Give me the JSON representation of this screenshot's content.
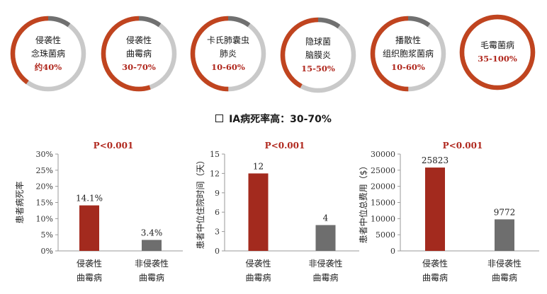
{
  "rings": [
    {
      "lines": [
        "侵袭性",
        "念珠菌病"
      ],
      "pct": "约40%",
      "fraction": 0.4
    },
    {
      "lines": [
        "侵袭性",
        "曲霉病"
      ],
      "pct": "30-70%",
      "fraction": 0.55
    },
    {
      "lines": [
        "卡氏肺囊虫",
        "肺炎"
      ],
      "pct": "10-60%",
      "fraction": 0.5
    },
    {
      "lines": [
        "隐球菌",
        "脑膜炎"
      ],
      "pct": "15-50%",
      "fraction": 0.42
    },
    {
      "lines": [
        "播散性",
        "组织胞浆菌病"
      ],
      "pct": "10-60%",
      "fraction": 0.5
    },
    {
      "lines": [
        "毛霉菌病"
      ],
      "pct": "35-100%",
      "fraction": 1.0
    }
  ],
  "colors": {
    "accent": "#c0441f",
    "pvalue": "#b0281e",
    "bar_red": "#a32a1e",
    "bar_gray": "#6e6e6e",
    "ring_gray": "#c9c9c9",
    "ring_dark": "#707070"
  },
  "headline": "IA病死率高：30-70%",
  "chart_data": [
    {
      "type": "bar",
      "title": "P<0.001",
      "ylabel": "患者病死率",
      "categories": [
        [
          "侵袭性",
          "曲霉病"
        ],
        [
          "非侵袭性",
          "曲霉病"
        ]
      ],
      "values": [
        14.1,
        3.4
      ],
      "value_labels": [
        "14.1%",
        "3.4%"
      ],
      "ylim": [
        0,
        30
      ],
      "yticks": [
        "0%",
        "5%",
        "10%",
        "15%",
        "20%",
        "25%",
        "30%"
      ],
      "ytick_values": [
        0,
        5,
        10,
        15,
        20,
        25,
        30
      ]
    },
    {
      "type": "bar",
      "title": "P<0.001",
      "ylabel": "患者中位住院时间（天）",
      "categories": [
        [
          "侵袭性",
          "曲霉病"
        ],
        [
          "非侵袭性",
          "曲霉病"
        ]
      ],
      "values": [
        12,
        4
      ],
      "value_labels": [
        "12",
        "4"
      ],
      "ylim": [
        0,
        15
      ],
      "yticks": [
        "0",
        "3",
        "6",
        "9",
        "12",
        "15"
      ],
      "ytick_values": [
        0,
        3,
        6,
        9,
        12,
        15
      ]
    },
    {
      "type": "bar",
      "title": "P<0.001",
      "ylabel": "患者中位总费用（$）",
      "categories": [
        [
          "侵袭性",
          "曲霉病"
        ],
        [
          "非侵袭性",
          "曲霉病"
        ]
      ],
      "values": [
        25823,
        9772
      ],
      "value_labels": [
        "25823",
        "9772"
      ],
      "ylim": [
        0,
        30000
      ],
      "yticks": [
        "0",
        "5000",
        "10000",
        "15000",
        "20000",
        "25000",
        "30000"
      ],
      "ytick_values": [
        0,
        5000,
        10000,
        15000,
        20000,
        25000,
        30000
      ]
    }
  ]
}
